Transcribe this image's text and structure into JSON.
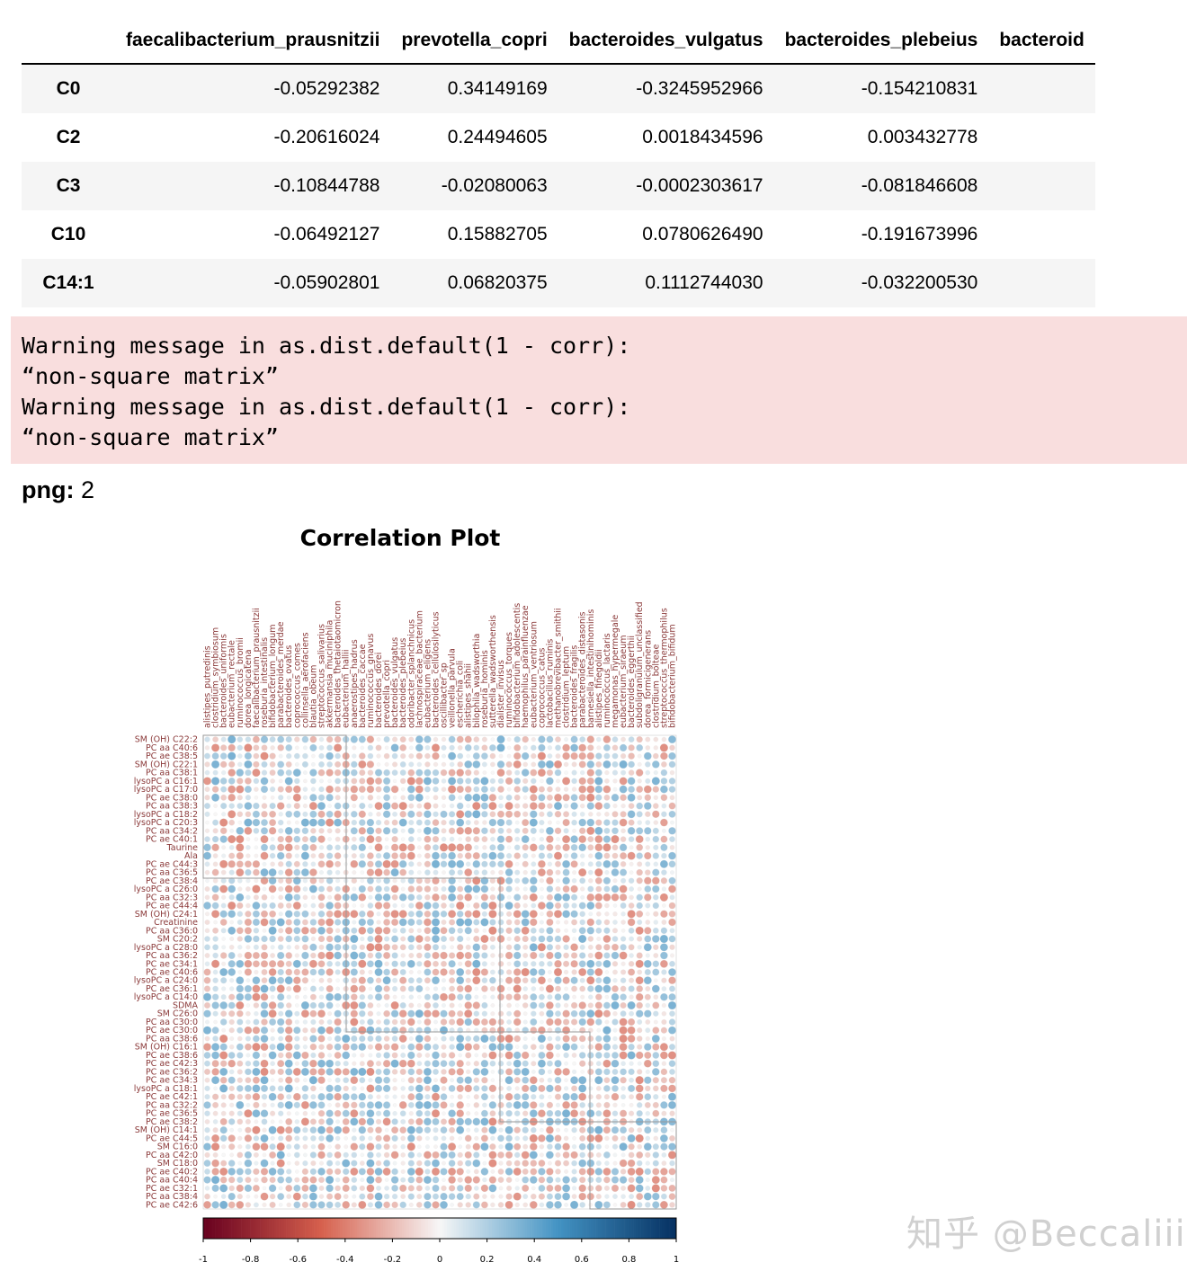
{
  "table": {
    "columns": [
      "",
      "faecalibacterium_prausnitzii",
      "prevotella_copri",
      "bacteroides_vulgatus",
      "bacteroides_plebeius",
      "bacteroid"
    ],
    "rows": [
      {
        "index": "C0",
        "values": [
          "-0.05292382",
          "0.34149169",
          "-0.3245952966",
          "-0.154210831",
          ""
        ]
      },
      {
        "index": "C2",
        "values": [
          "-0.20616024",
          "0.24494605",
          "0.0018434596",
          "0.003432778",
          ""
        ]
      },
      {
        "index": "C3",
        "values": [
          "-0.10844788",
          "-0.02080063",
          "-0.0002303617",
          "-0.081846608",
          ""
        ]
      },
      {
        "index": "C10",
        "values": [
          "-0.06492127",
          "0.15882705",
          "0.0780626490",
          "-0.191673996",
          ""
        ]
      },
      {
        "index": "C14:1",
        "values": [
          "-0.05902801",
          "0.06820375",
          "0.1112744030",
          "-0.032200530",
          ""
        ]
      }
    ]
  },
  "warning": {
    "lines": [
      "Warning message in as.dist.default(1 - corr):",
      "“non-square matrix”",
      "Warning message in as.dist.default(1 - corr):",
      "“non-square matrix”"
    ]
  },
  "output": {
    "label": "png:",
    "value": "2"
  },
  "chart_data": {
    "type": "heatmap",
    "title": "Correlation Plot",
    "color_scale": {
      "min": -1,
      "max": 1,
      "low_color": "#67001f",
      "mid_color": "#f7f7f7",
      "high_color": "#053061"
    },
    "colorbar_ticks": [
      "-1",
      "-0.8",
      "-0.6",
      "-0.4",
      "-0.2",
      "0",
      "0.2",
      "0.4",
      "0.6",
      "0.8",
      "1"
    ],
    "row_labels": [
      "SM (OH) C22:2",
      "PC aa C40:6",
      "PC ae C38:5",
      "SM (OH) C22:1",
      "PC aa C38:1",
      "lysoPC a C16:1",
      "lysoPC a C17:0",
      "PC ae C38:0",
      "PC aa C38:3",
      "lysoPC a C18:2",
      "lysoPC a C20:3",
      "PC aa C34:2",
      "PC ae C40:1",
      "Taurine",
      "Ala",
      "PC ae C44:3",
      "PC aa C36:5",
      "PC ae C38:4",
      "lysoPC a C26:0",
      "PC aa C32:3",
      "PC ae C44:4",
      "SM (OH) C24:1",
      "Creatinine",
      "PC aa C36:0",
      "SM C20:2",
      "lysoPC a C28:0",
      "PC aa C36:2",
      "PC ae C34:1",
      "PC ae C40:6",
      "lysoPC a C24:0",
      "PC ae C36:1",
      "lysoPC a C14:0",
      "SDMA",
      "SM C26:0",
      "PC aa C30:0",
      "PC ae C30:0",
      "PC aa C38:6",
      "SM (OH) C16:1",
      "PC ae C38:6",
      "PC ae C42:3",
      "PC ae C36:2",
      "PC ae C34:3",
      "lysoPC a C18:1",
      "PC ae C42:1",
      "PC aa C32:2",
      "PC ae C36:5",
      "PC ae C38:2",
      "SM (OH) C14:1",
      "PC ae C44:5",
      "SM C16:0",
      "PC aa C42:0",
      "SM C18:0",
      "PC ae C40:2",
      "PC aa C40:4",
      "PC ae C32:1",
      "PC aa C38:4",
      "PC ae C42:6"
    ],
    "column_labels": [
      "alistipes_putredinis",
      "clostridium_symbiosum",
      "bacteroides_uniformis",
      "eubacterium_rectale",
      "ruminococcus_bromii",
      "dorea_longicatena",
      "faecalibacterium_prausnitzii",
      "roseburia_intestinalis",
      "bifidobacterium_longum",
      "parabacteroides_merdae",
      "bacteroides_ovatus",
      "coprococcus_comes",
      "collinsella_aerofaciens",
      "blautia_obeum",
      "streptococcus_salivarius",
      "akkermansia_muciniphila",
      "bacteroides_thetaiotaomicron",
      "eubacterium_hallii",
      "anaerostipes_hadrus",
      "bacteroides_caccae",
      "ruminococcus_gnavus",
      "bacteroides_dorei",
      "prevotella_copri",
      "bacteroides_vulgatus",
      "bacteroides_plebeius",
      "odoribacter_splanchnicus",
      "lachnospiraceae_bacterium",
      "eubacterium_eligens",
      "bacteroides_cellulosilyticus",
      "oscillibacter_sp",
      "veillonella_parvula",
      "escherichia_coli",
      "alistipes_shahii",
      "bilophila_wadsworthia",
      "roseburia_hominis",
      "sutterella_wadsworthensis",
      "dialister_invisus",
      "ruminococcus_torques",
      "bifidobacterium_adolescentis",
      "haemophilus_parainfluenzae",
      "eubacterium_ventriosum",
      "coprococcus_catus",
      "lactobacillus_ruminis",
      "methanobrevibacter_smithii",
      "clostridium_leptum",
      "bacteroides_fragilis",
      "parabacteroides_distasonis",
      "barnesiella_intestinihominis",
      "alistipes_finegoldii",
      "ruminococcus_lactaris",
      "megamonas_hypermegale",
      "eubacterium_siraeum",
      "bacteroides_eggerthii",
      "subdoligranulum_unclassified",
      "dorea_formicigenerans",
      "clostridium_bolteae",
      "streptococcus_thermophilus",
      "bifidobacterium_bifidum"
    ]
  },
  "watermark": "知乎 @Beccaliii"
}
